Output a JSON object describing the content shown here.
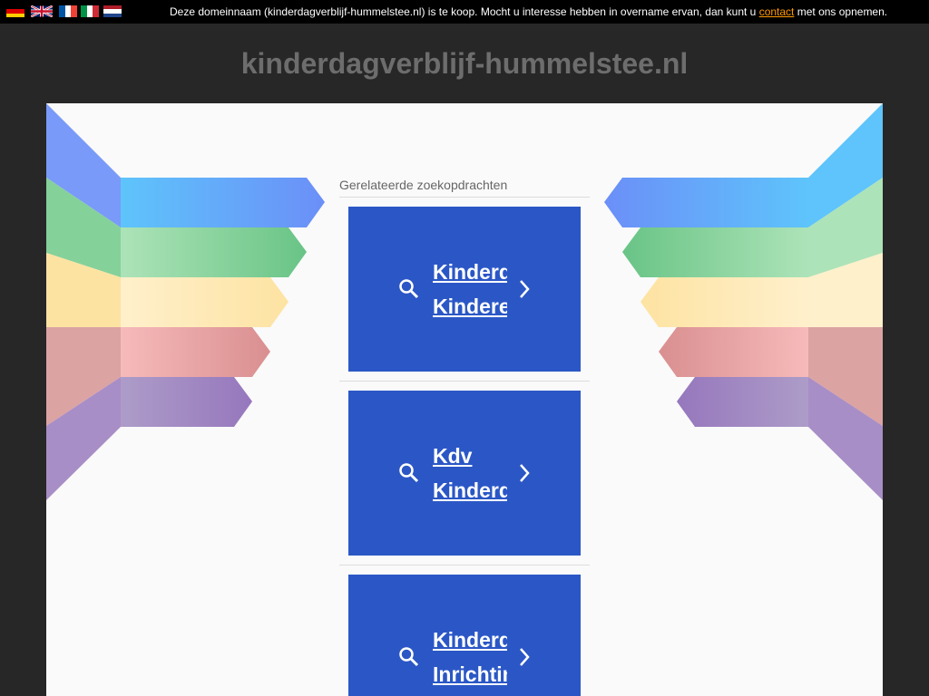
{
  "topbar": {
    "flags": [
      {
        "icon": "flag-de-icon",
        "colors": [
          "#000000",
          "#dd0000",
          "#ffce00"
        ]
      },
      {
        "icon": "flag-gb-icon"
      },
      {
        "icon": "flag-fr-icon",
        "colors": [
          "#0055a4",
          "#ffffff",
          "#ef4135"
        ]
      },
      {
        "icon": "flag-it-icon",
        "colors": [
          "#009246",
          "#ffffff",
          "#ce2b37"
        ]
      },
      {
        "icon": "flag-nl-icon",
        "colors": [
          "#ae1c28",
          "#ffffff",
          "#21468b"
        ]
      }
    ],
    "notice_before": "Deze domeinnaam (kinderdagverblijf-hummelstee.nl) is te koop. Mocht u interesse hebben in overname ervan, dan kunt u ",
    "contact_link": "contact",
    "notice_after": " met ons opnemen."
  },
  "domain_title": "kinderdagverblijf-hummelstee.nl",
  "main": {
    "related_heading": "Gerelateerde zoekopdrachten",
    "cards": [
      {
        "lines": [
          "Kinderd",
          "Kindere"
        ]
      },
      {
        "lines": [
          "Kdv",
          "Kinderd"
        ]
      },
      {
        "lines": [
          "Kinderd",
          "Inrichtin"
        ]
      }
    ]
  },
  "colors": {
    "card": "#2b57c6",
    "link": "#ff9900",
    "background": "#272727"
  }
}
